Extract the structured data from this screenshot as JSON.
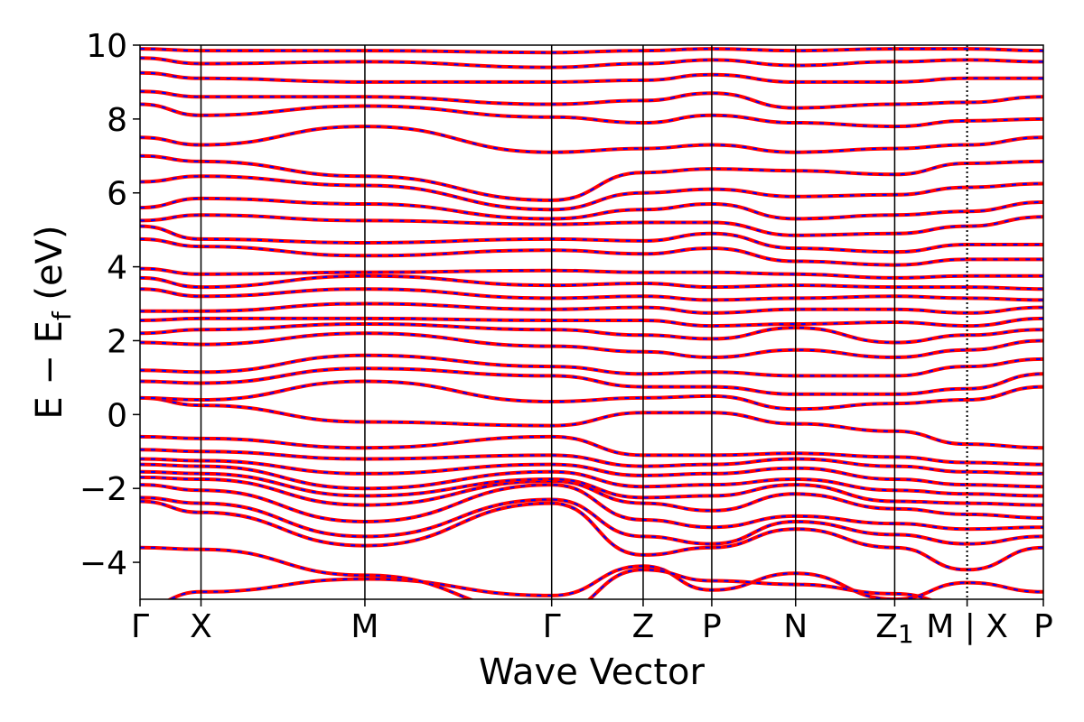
{
  "chart_data": {
    "type": "line",
    "xlabel": "Wave Vector",
    "ylabel": "E − E",
    "ylabel_sub": "f",
    "ylabel_unit": " (eV)",
    "ylim": [
      -5,
      10
    ],
    "yticks": [
      {
        "value": -4,
        "label": "−4"
      },
      {
        "value": -2,
        "label": "−2"
      },
      {
        "value": 0,
        "label": "0"
      },
      {
        "value": 2,
        "label": "2"
      },
      {
        "value": 4,
        "label": "4"
      },
      {
        "value": 6,
        "label": "6"
      },
      {
        "value": 8,
        "label": "8"
      },
      {
        "value": 10,
        "label": "10"
      }
    ],
    "xlim": [
      0,
      11.85
    ],
    "kpoints": [
      {
        "label": "Γ",
        "x": 0.0
      },
      {
        "label": "X",
        "x": 0.8
      },
      {
        "label": "M",
        "x": 2.95
      },
      {
        "label": "Γ",
        "x": 5.4
      },
      {
        "label": "Z",
        "x": 6.6
      },
      {
        "label": "P",
        "x": 7.5
      },
      {
        "label": "N",
        "x": 8.6
      },
      {
        "label": "Z",
        "x": 9.9,
        "sub": "1"
      },
      {
        "label": "M | X",
        "x": 10.85,
        "dotted": true
      },
      {
        "label": "P",
        "x": 11.85
      }
    ],
    "series_colors": {
      "primary": "#ff0000",
      "secondary": "#0000ff"
    },
    "bands": [
      {
        "values": [
          -5.2,
          -4.8,
          -4.45,
          -4.9,
          -4.1,
          -4.75,
          -4.3,
          -5.0,
          -4.55,
          -4.8
        ]
      },
      {
        "values": [
          -3.6,
          -3.65,
          -4.35,
          -5.4,
          -4.2,
          -4.5,
          -4.6,
          -4.85,
          -5.2,
          -5.4
        ]
      },
      {
        "values": [
          -2.35,
          -2.65,
          -3.55,
          -2.4,
          -3.8,
          -3.6,
          -3.1,
          -3.6,
          -4.2,
          -3.6
        ]
      },
      {
        "values": [
          -2.25,
          -2.4,
          -3.3,
          -2.3,
          -3.3,
          -3.5,
          -2.9,
          -3.25,
          -3.5,
          -3.3
        ]
      },
      {
        "values": [
          -1.9,
          -2.05,
          -2.9,
          -1.9,
          -2.85,
          -3.05,
          -2.75,
          -2.95,
          -3.1,
          -3.05
        ]
      },
      {
        "values": [
          -1.7,
          -1.75,
          -2.45,
          -1.8,
          -2.4,
          -2.6,
          -2.15,
          -2.55,
          -2.7,
          -2.8
        ]
      },
      {
        "values": [
          -1.55,
          -1.6,
          -2.2,
          -1.75,
          -2.25,
          -2.2,
          -1.9,
          -2.35,
          -2.4,
          -2.45
        ]
      },
      {
        "values": [
          -1.35,
          -1.4,
          -2.0,
          -1.55,
          -1.95,
          -1.9,
          -1.75,
          -2.05,
          -2.15,
          -2.2
        ]
      },
      {
        "values": [
          -1.2,
          -1.25,
          -1.6,
          -1.35,
          -1.65,
          -1.6,
          -1.45,
          -1.75,
          -1.9,
          -1.95
        ]
      },
      {
        "values": [
          -0.95,
          -1.0,
          -1.2,
          -1.1,
          -1.4,
          -1.35,
          -1.2,
          -1.4,
          -1.55,
          -1.6
        ]
      },
      {
        "values": [
          -0.6,
          -0.65,
          -0.9,
          -0.6,
          -1.1,
          -1.1,
          -1.05,
          -1.15,
          -1.3,
          -1.35
        ]
      },
      {
        "values": [
          0.45,
          0.25,
          -0.2,
          -0.3,
          0.05,
          0.05,
          -0.25,
          -0.45,
          -0.8,
          -0.9
        ]
      },
      {
        "values": [
          0.45,
          0.4,
          0.9,
          0.35,
          0.45,
          0.5,
          0.15,
          0.3,
          0.4,
          0.75
        ]
      },
      {
        "values": [
          0.9,
          0.85,
          1.25,
          1.05,
          0.75,
          0.75,
          0.55,
          0.55,
          0.7,
          1.1
        ]
      },
      {
        "values": [
          1.2,
          1.15,
          1.6,
          1.3,
          1.1,
          1.15,
          1.05,
          1.05,
          1.3,
          1.5
        ]
      },
      {
        "values": [
          1.95,
          1.9,
          2.2,
          1.85,
          1.7,
          1.55,
          1.75,
          1.55,
          1.75,
          2.0
        ]
      },
      {
        "values": [
          2.2,
          2.3,
          2.45,
          2.3,
          2.15,
          2.05,
          2.35,
          1.95,
          2.15,
          2.3
        ]
      },
      {
        "values": [
          2.55,
          2.6,
          2.6,
          2.55,
          2.55,
          2.4,
          2.45,
          2.5,
          2.4,
          2.6
        ]
      },
      {
        "values": [
          2.8,
          2.8,
          3.0,
          2.85,
          2.9,
          2.75,
          2.85,
          2.85,
          2.75,
          2.9
        ]
      },
      {
        "values": [
          3.4,
          3.2,
          3.4,
          3.15,
          3.2,
          3.1,
          3.15,
          3.2,
          3.15,
          3.1
        ]
      },
      {
        "values": [
          3.7,
          3.45,
          3.75,
          3.5,
          3.55,
          3.45,
          3.5,
          3.45,
          3.45,
          3.4
        ]
      },
      {
        "values": [
          3.95,
          3.8,
          3.85,
          3.9,
          3.85,
          3.85,
          3.8,
          3.7,
          3.75,
          3.75
        ]
      },
      {
        "values": [
          4.75,
          4.55,
          4.3,
          4.45,
          4.35,
          4.5,
          4.15,
          4.05,
          4.2,
          4.2
        ]
      },
      {
        "values": [
          5.1,
          4.75,
          4.65,
          4.75,
          4.7,
          4.9,
          4.5,
          4.4,
          4.6,
          4.6
        ]
      },
      {
        "values": [
          5.25,
          5.4,
          5.25,
          5.15,
          5.2,
          5.2,
          4.85,
          4.9,
          5.1,
          5.35
        ]
      },
      {
        "values": [
          5.6,
          5.85,
          5.7,
          5.3,
          5.55,
          5.7,
          5.3,
          5.4,
          5.5,
          5.75
        ]
      },
      {
        "values": [
          6.3,
          6.45,
          6.2,
          5.55,
          6.0,
          6.1,
          5.9,
          5.95,
          6.15,
          6.25
        ]
      },
      {
        "values": [
          7.0,
          6.85,
          6.45,
          5.8,
          6.55,
          6.65,
          6.6,
          6.5,
          6.8,
          6.85
        ]
      },
      {
        "values": [
          7.5,
          7.3,
          7.8,
          7.1,
          7.2,
          7.3,
          7.1,
          7.2,
          7.3,
          7.5
        ]
      },
      {
        "values": [
          8.4,
          8.1,
          8.35,
          8.05,
          7.9,
          8.1,
          7.9,
          7.8,
          7.95,
          8.0
        ]
      },
      {
        "values": [
          8.75,
          8.6,
          8.6,
          8.4,
          8.5,
          8.7,
          8.3,
          8.4,
          8.45,
          8.6
        ]
      },
      {
        "values": [
          9.25,
          9.1,
          9.0,
          9.0,
          9.05,
          9.2,
          9.0,
          9.0,
          9.1,
          9.1
        ]
      },
      {
        "values": [
          9.65,
          9.5,
          9.55,
          9.4,
          9.5,
          9.6,
          9.45,
          9.55,
          9.6,
          9.55
        ]
      },
      {
        "values": [
          9.9,
          9.85,
          9.85,
          9.8,
          9.85,
          9.9,
          9.85,
          9.9,
          9.9,
          9.85
        ]
      }
    ]
  }
}
